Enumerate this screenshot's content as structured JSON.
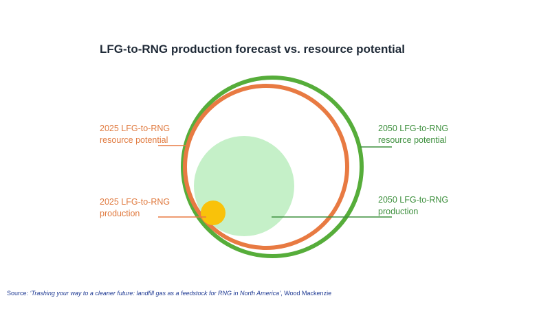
{
  "title": "LFG-to-RNG production forecast vs. resource potential",
  "labels": {
    "resource_2025": [
      "2025 LFG-to-RNG",
      "resource potential"
    ],
    "production_2025": [
      "2025 LFG-to-RNG",
      "production"
    ],
    "resource_2050": [
      "2050 LFG-to-RNG",
      "resource potential"
    ],
    "production_2050": [
      "2050 LFG-to-RNG",
      "production"
    ]
  },
  "source": {
    "prefix": "Source: ",
    "title": "‘Trashing your way to a cleaner future: landfill gas as a feedstock for RNG in North America’",
    "suffix": ", Wood Mackenzie"
  },
  "colors": {
    "resource_2050": "#56ad3a",
    "resource_2025": "#e87a42",
    "production_2050": "#c5f0c8",
    "production_2025": "#f9c20a",
    "label_2025": "#e07a3f",
    "label_2050": "#3d8f3d"
  }
}
